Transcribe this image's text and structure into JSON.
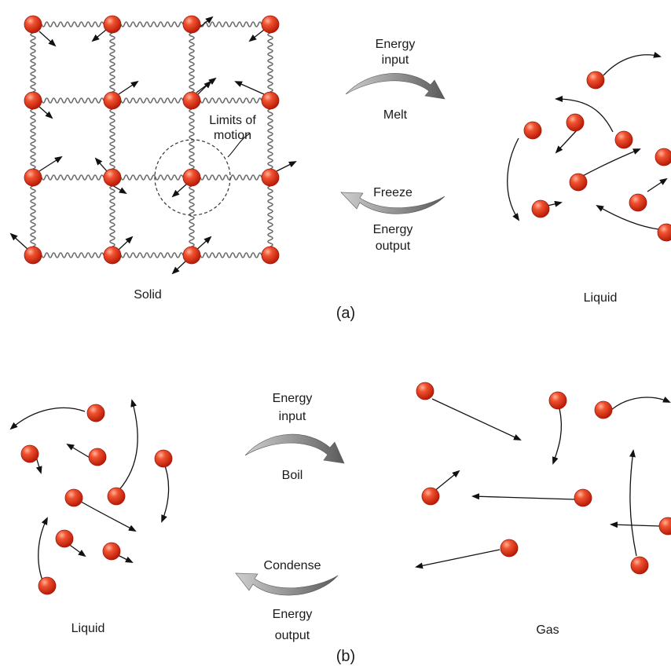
{
  "panel_a": {
    "caption": "(a)",
    "solid_label": "Solid",
    "liquid_label": "Liquid",
    "melt": {
      "line1": "Energy",
      "line2": "input",
      "process": "Melt"
    },
    "freeze": {
      "process": "Freeze",
      "line1": "Energy",
      "line2": "output"
    },
    "limits_line1": "Limits of",
    "limits_line2": "motion"
  },
  "panel_b": {
    "caption": "(b)",
    "liquid_label": "Liquid",
    "gas_label": "Gas",
    "boil": {
      "line1": "Energy",
      "line2": "input",
      "process": "Boil"
    },
    "condense": {
      "process": "Condense",
      "line1": "Energy",
      "line2": "output"
    }
  },
  "colors": {
    "molecule": "#e2341a",
    "molecule_highlight": "#ff9a80",
    "spring": "#6b6b6b",
    "process_arrow": "#707070"
  }
}
